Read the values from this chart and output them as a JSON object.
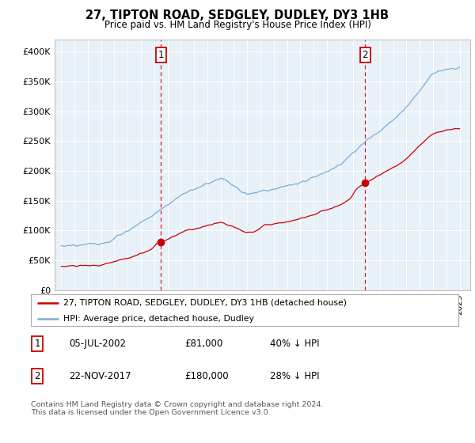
{
  "title": "27, TIPTON ROAD, SEDGLEY, DUDLEY, DY3 1HB",
  "subtitle": "Price paid vs. HM Land Registry's House Price Index (HPI)",
  "legend_line1": "27, TIPTON ROAD, SEDGLEY, DUDLEY, DY3 1HB (detached house)",
  "legend_line2": "HPI: Average price, detached house, Dudley",
  "sale1_date": "05-JUL-2002",
  "sale1_price": "£81,000",
  "sale1_hpi": "40% ↓ HPI",
  "sale1_x": 2002.51,
  "sale1_y": 81000,
  "sale2_date": "22-NOV-2017",
  "sale2_price": "£180,000",
  "sale2_hpi": "28% ↓ HPI",
  "sale2_x": 2017.89,
  "sale2_y": 180000,
  "footer": "Contains HM Land Registry data © Crown copyright and database right 2024.\nThis data is licensed under the Open Government Licence v3.0.",
  "property_color": "#cc0000",
  "hpi_color": "#7aaed6",
  "plot_bg_color": "#e8f0f8",
  "ylim": [
    0,
    420000
  ],
  "yticks": [
    0,
    50000,
    100000,
    150000,
    200000,
    250000,
    300000,
    350000,
    400000
  ],
  "ytick_labels": [
    "£0",
    "£50K",
    "£100K",
    "£150K",
    "£200K",
    "£250K",
    "£300K",
    "£350K",
    "£400K"
  ],
  "xmin": 1994.5,
  "xmax": 2025.8
}
